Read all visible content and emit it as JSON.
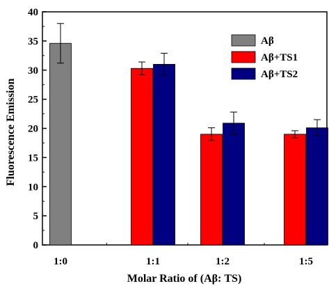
{
  "chart_data": {
    "type": "bar",
    "title": "",
    "xlabel": "Molar Ratio of (Aβ: TS)",
    "ylabel": "Fluorescence Emission",
    "ylim": [
      0,
      40
    ],
    "yticks": [
      0,
      5,
      10,
      15,
      20,
      25,
      30,
      35,
      40
    ],
    "categories": [
      "1:0",
      "1:1",
      "1:2",
      "1:5"
    ],
    "series": [
      {
        "name": "Aβ",
        "color": "#808080",
        "values": [
          34.6,
          null,
          null,
          null
        ],
        "errors": [
          3.4,
          null,
          null,
          null
        ]
      },
      {
        "name": "Aβ+TS1",
        "color": "#ff0000",
        "values": [
          null,
          30.3,
          19.0,
          19.0
        ],
        "errors": [
          null,
          1.1,
          1.1,
          0.6
        ]
      },
      {
        "name": "Aβ+TS2",
        "color": "#000080",
        "values": [
          null,
          31.0,
          20.9,
          20.1
        ],
        "errors": [
          null,
          1.9,
          1.9,
          1.4
        ]
      }
    ],
    "grid": false,
    "legend_position": "top-right"
  }
}
